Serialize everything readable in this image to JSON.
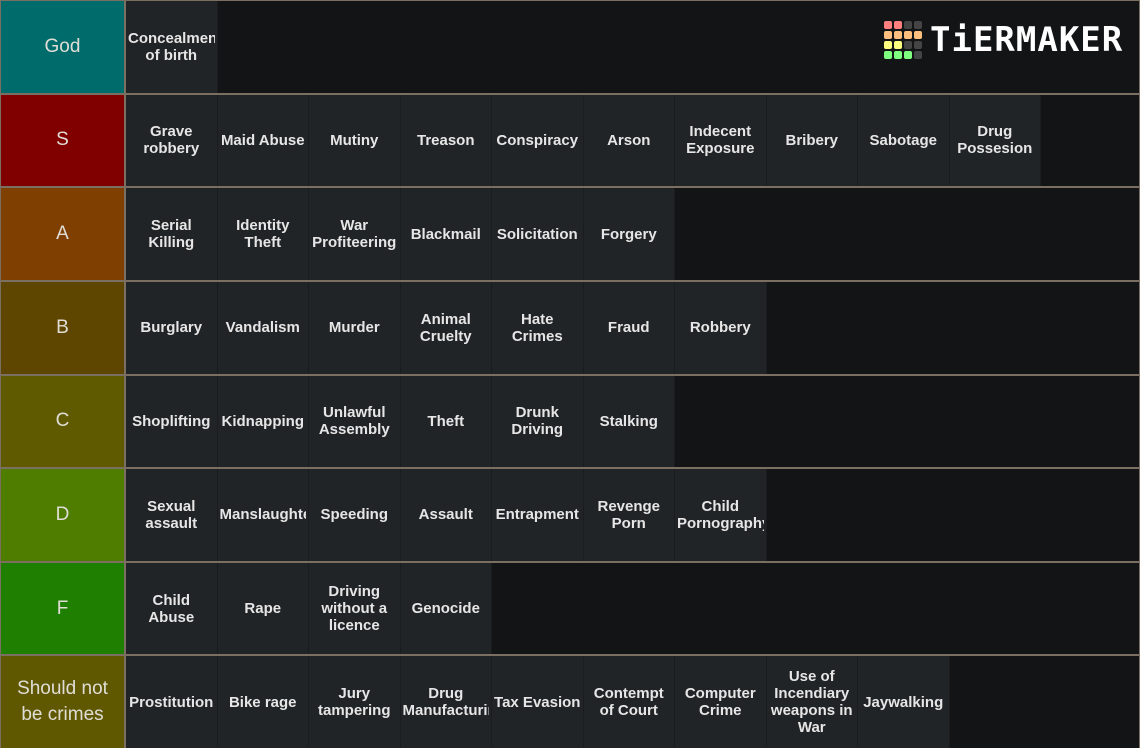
{
  "logo": {
    "text": "TiERMAKER",
    "grid_colors": [
      "#ff7f7f",
      "#ff7f7f",
      "#444",
      "#444",
      "#ffbf7f",
      "#ffbf7f",
      "#ffbf7f",
      "#ffbf7f",
      "#ffff7f",
      "#ffff7f",
      "#444",
      "#444",
      "#7fff7f",
      "#7fff7f",
      "#7fff7f",
      "#444"
    ]
  },
  "tiers": [
    {
      "label": "God",
      "color": "#006b6b",
      "items": [
        "Concealment of birth"
      ]
    },
    {
      "label": "S",
      "color": "#800000",
      "items": [
        "Grave robbery",
        "Maid Abuse",
        "Mutiny",
        "Treason",
        "Conspiracy",
        "Arson",
        "Indecent Exposure",
        "Bribery",
        "Sabotage",
        "Drug Possesion"
      ]
    },
    {
      "label": "A",
      "color": "#7f3f00",
      "items": [
        "Serial Killing",
        "Identity Theft",
        "War Profiteering",
        "Blackmail",
        "Solicitation",
        "Forgery"
      ]
    },
    {
      "label": "B",
      "color": "#5f4600",
      "items": [
        "Burglary",
        "Vandalism",
        "Murder",
        "Animal Cruelty",
        "Hate Crimes",
        "Fraud",
        "Robbery"
      ]
    },
    {
      "label": "C",
      "color": "#5f5a00",
      "items": [
        "Shoplifting",
        "Kidnapping",
        "Unlawful Assembly",
        "Theft",
        "Drunk Driving",
        "Stalking"
      ]
    },
    {
      "label": "D",
      "color": "#4e7d00",
      "items": [
        "Sexual assault",
        "Manslaughter",
        "Speeding",
        "Assault",
        "Entrapment",
        "Revenge Porn",
        "Child Pornography"
      ]
    },
    {
      "label": "F",
      "color": "#1f7f00",
      "items": [
        "Child Abuse",
        "Rape",
        "Driving without a licence",
        "Genocide"
      ]
    },
    {
      "label": "Should not be crimes",
      "color": "#5f5800",
      "items": [
        "Prostitution",
        "Bike rage",
        "Jury tampering",
        "Drug Manufacturing",
        "Tax Evasion",
        "Contempt of Court",
        "Computer Crime",
        "Use of Incendiary weapons in War",
        "Jaywalking"
      ]
    }
  ]
}
